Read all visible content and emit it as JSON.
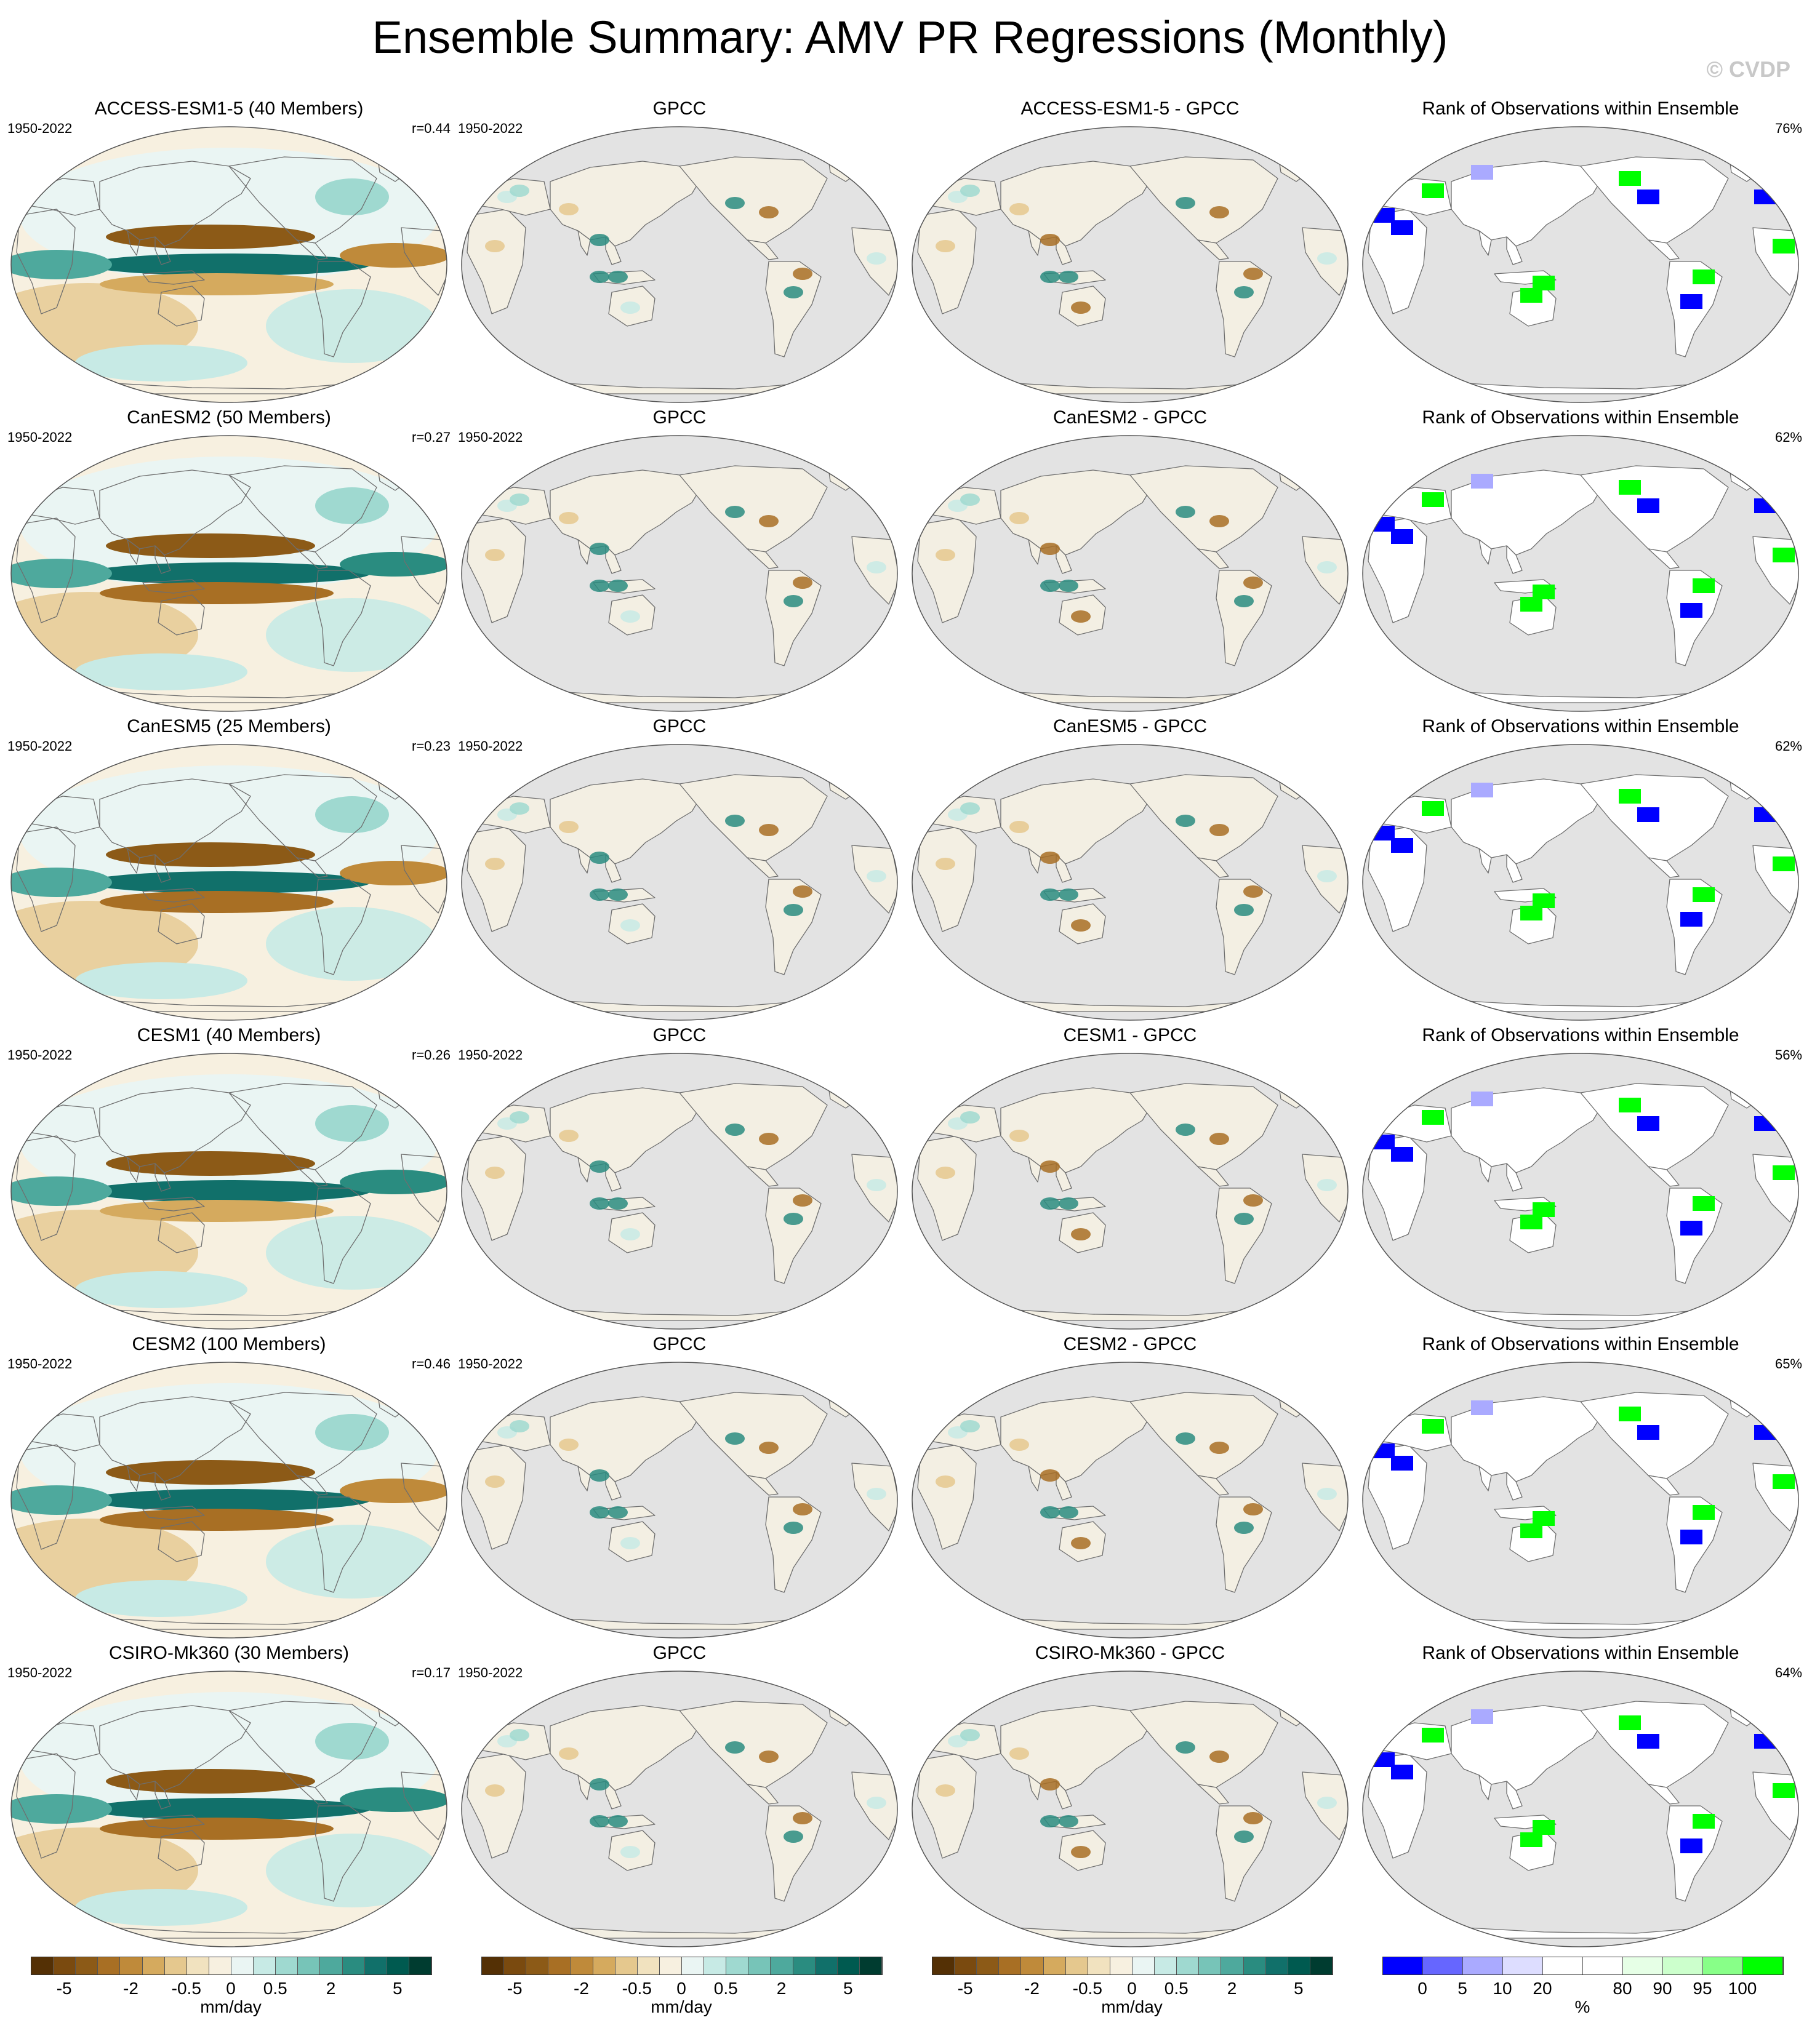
{
  "title": "Ensemble Summary: AMV PR Regressions (Monthly)",
  "copyright": "© CVDP",
  "rows": [
    {
      "model_title": "ACCESS-ESM1-5 (40 Members)",
      "period": "1950-2022",
      "corr": "r=0.44",
      "obs_title": "GPCC",
      "obs_period": "1950-2022",
      "diff_title": "ACCESS-ESM1-5 - GPCC",
      "rank_title": "Rank of Observations within Ensemble",
      "rank_pct": "76%"
    },
    {
      "model_title": "CanESM2 (50 Members)",
      "period": "1950-2022",
      "corr": "r=0.27",
      "obs_title": "GPCC",
      "obs_period": "1950-2022",
      "diff_title": "CanESM2 - GPCC",
      "rank_title": "Rank of Observations within Ensemble",
      "rank_pct": "62%"
    },
    {
      "model_title": "CanESM5 (25 Members)",
      "period": "1950-2022",
      "corr": "r=0.23",
      "obs_title": "GPCC",
      "obs_period": "1950-2022",
      "diff_title": "CanESM5 - GPCC",
      "rank_title": "Rank of Observations within Ensemble",
      "rank_pct": "62%"
    },
    {
      "model_title": "CESM1 (40 Members)",
      "period": "1950-2022",
      "corr": "r=0.26",
      "obs_title": "GPCC",
      "obs_period": "1950-2022",
      "diff_title": "CESM1 - GPCC",
      "rank_title": "Rank of Observations within Ensemble",
      "rank_pct": "56%"
    },
    {
      "model_title": "CESM2 (100 Members)",
      "period": "1950-2022",
      "corr": "r=0.46",
      "obs_title": "GPCC",
      "obs_period": "1950-2022",
      "diff_title": "CESM2 - GPCC",
      "rank_title": "Rank of Observations within Ensemble",
      "rank_pct": "65%"
    },
    {
      "model_title": "CSIRO-Mk360 (30 Members)",
      "period": "1950-2022",
      "corr": "r=0.17",
      "obs_title": "GPCC",
      "obs_period": "1950-2022",
      "diff_title": "CSIRO-Mk360 - GPCC",
      "rank_title": "Rank of Observations within Ensemble",
      "rank_pct": "64%"
    }
  ],
  "colorbars": {
    "precip": {
      "colors": [
        "#543005",
        "#7a4a0f",
        "#8c5a17",
        "#a86f24",
        "#bf8a3a",
        "#d5aa5e",
        "#e5c88e",
        "#f1e2bf",
        "#f7f0e0",
        "#eaf5f3",
        "#c7eae5",
        "#9fd9d0",
        "#77c4b8",
        "#4ea99d",
        "#2a8c80",
        "#11706a",
        "#005a50",
        "#003c30"
      ],
      "ticks": [
        "-5",
        "-2",
        "-0.5",
        "0",
        "0.5",
        "2",
        "5"
      ],
      "label": "mm/day"
    },
    "rank": {
      "colors": [
        "#0000ff",
        "#6666ff",
        "#aaaaff",
        "#ddddff",
        "#ffffff",
        "#ffffff",
        "#e6ffe6",
        "#ccffcc",
        "#88ff88",
        "#00ff00"
      ],
      "ticks": [
        "0",
        "5",
        "10",
        "20",
        "80",
        "90",
        "95",
        "100"
      ],
      "label": "%"
    }
  },
  "colors": {
    "ocean_missing": "#e3e3e3",
    "coast": "#6e6e6e",
    "brown": "#a86f24",
    "teal": "#2a8c80",
    "rank_blue": "#0000ff",
    "rank_green": "#00ff00"
  }
}
